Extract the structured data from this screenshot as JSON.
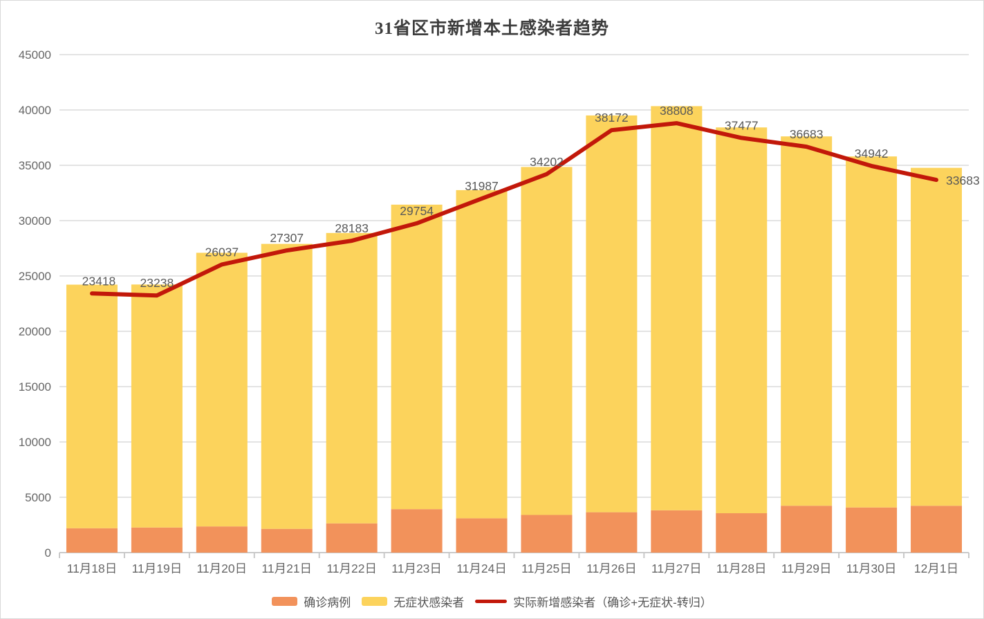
{
  "page": {
    "background": "#ffffff",
    "frame_border_color": "#d8d8d8"
  },
  "chart_data": {
    "type": "bar",
    "variant": "stacked-bars-with-line-overlay",
    "title": "31省区市新增本土感染者趋势",
    "categories": [
      "11月18日",
      "11月19日",
      "11月20日",
      "11月21日",
      "11月22日",
      "11月23日",
      "11月24日",
      "11月25日",
      "11月26日",
      "11月27日",
      "11月28日",
      "11月29日",
      "11月30日",
      "12月1日"
    ],
    "series": [
      {
        "name": "确诊病例",
        "kind": "bar",
        "stacked": true,
        "color": "#F2925B",
        "values": [
          2204,
          2267,
          2365,
          2145,
          2641,
          3927,
          3103,
          3405,
          3648,
          3822,
          3561,
          4236,
          4080,
          4233
        ]
      },
      {
        "name": "无症状感染者",
        "kind": "bar",
        "stacked": true,
        "color": "#FCD35C",
        "values": [
          22011,
          21961,
          24730,
          25754,
          26242,
          27517,
          29654,
          31444,
          35858,
          36525,
          34860,
          33376,
          31720,
          30539
        ]
      },
      {
        "name": "实际新增感染者（确诊+无症状-转归）",
        "kind": "line",
        "color": "#C2180A",
        "show_value_labels": true,
        "values": [
          23418,
          23238,
          26037,
          27307,
          28183,
          29754,
          31987,
          34202,
          38172,
          38808,
          37477,
          36683,
          34942,
          33683
        ]
      }
    ],
    "ylim": [
      0,
      45000
    ],
    "ytick_step": 5000,
    "ytick_labels": [
      "0",
      "5000",
      "10000",
      "15000",
      "20000",
      "25000",
      "30000",
      "35000",
      "40000",
      "45000"
    ],
    "grid": "horizontal-only",
    "legend_position": "bottom",
    "axis_label_color": "#666666",
    "value_label_color": "#595959",
    "gridline_color": "#e3e3e3",
    "axis_line_color": "#c9c9c9",
    "title_color": "#3d3d3d"
  }
}
